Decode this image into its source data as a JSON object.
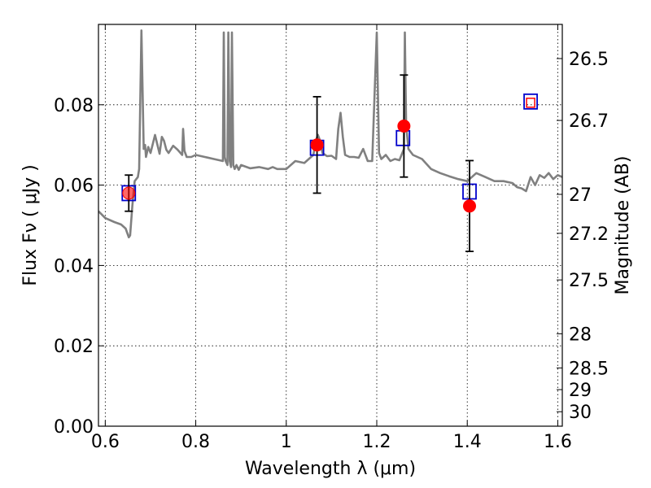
{
  "chart_data": {
    "type": "scatter",
    "title": "",
    "xlabel": "Wavelength  λ (μm)",
    "ylabel": "Flux  Fν  ( μJy )",
    "y2label": "Magnitude (AB)",
    "xlim": [
      0.585,
      1.61
    ],
    "ylim": [
      0.0,
      0.1
    ],
    "grid": true,
    "x_ticks": [
      {
        "value": 0.6,
        "label": "0.6"
      },
      {
        "value": 0.8,
        "label": "0.8"
      },
      {
        "value": 1.0,
        "label": "1"
      },
      {
        "value": 1.2,
        "label": "1.2"
      },
      {
        "value": 1.4,
        "label": "1.4"
      },
      {
        "value": 1.6,
        "label": "1.6"
      }
    ],
    "y_ticks": [
      {
        "value": 0.0,
        "label": "0.00"
      },
      {
        "value": 0.02,
        "label": "0.02"
      },
      {
        "value": 0.04,
        "label": "0.04"
      },
      {
        "value": 0.06,
        "label": "0.06"
      },
      {
        "value": 0.08,
        "label": "0.08"
      }
    ],
    "y2_ticks": [
      {
        "label": "26.5",
        "flux": 0.0915
      },
      {
        "label": "26.7",
        "flux": 0.0761
      },
      {
        "label": "27",
        "flux": 0.0577
      },
      {
        "label": "27.2",
        "flux": 0.048
      },
      {
        "label": "27.5",
        "flux": 0.0364
      },
      {
        "label": "28",
        "flux": 0.023
      },
      {
        "label": "28.5",
        "flux": 0.0145
      },
      {
        "label": "29",
        "flux": 0.0091
      },
      {
        "label": "30",
        "flux": 0.0036
      }
    ],
    "series": [
      {
        "marker": "line",
        "color": "#808080",
        "x": [
          0.585,
          0.6,
          0.62,
          0.635,
          0.645,
          0.652,
          0.655,
          0.66,
          0.665,
          0.672,
          0.675,
          0.68,
          0.685,
          0.688,
          0.69,
          0.695,
          0.7,
          0.71,
          0.72,
          0.725,
          0.73,
          0.735,
          0.74,
          0.75,
          0.76,
          0.77,
          0.772,
          0.775,
          0.78,
          0.79,
          0.8,
          0.82,
          0.84,
          0.86,
          0.862,
          0.864,
          0.866,
          0.87,
          0.872,
          0.875,
          0.878,
          0.88,
          0.883,
          0.886,
          0.89,
          0.895,
          0.9,
          0.92,
          0.94,
          0.96,
          0.97,
          0.98,
          1.0,
          1.02,
          1.04,
          1.06,
          1.065,
          1.07,
          1.075,
          1.08,
          1.09,
          1.1,
          1.11,
          1.115,
          1.12,
          1.125,
          1.13,
          1.14,
          1.15,
          1.16,
          1.17,
          1.18,
          1.19,
          1.2,
          1.205,
          1.21,
          1.22,
          1.23,
          1.24,
          1.25,
          1.26,
          1.262,
          1.265,
          1.27,
          1.28,
          1.3,
          1.32,
          1.34,
          1.36,
          1.38,
          1.4,
          1.42,
          1.44,
          1.46,
          1.48,
          1.5,
          1.51,
          1.52,
          1.53,
          1.54,
          1.55,
          1.56,
          1.57,
          1.58,
          1.59,
          1.6,
          1.61
        ],
        "y": [
          0.0535,
          0.0518,
          0.0508,
          0.0502,
          0.0492,
          0.047,
          0.0475,
          0.055,
          0.061,
          0.062,
          0.064,
          0.0985,
          0.069,
          0.07,
          0.067,
          0.0695,
          0.068,
          0.0725,
          0.0678,
          0.072,
          0.071,
          0.0688,
          0.068,
          0.0698,
          0.0688,
          0.0675,
          0.074,
          0.0685,
          0.067,
          0.067,
          0.0675,
          0.067,
          0.0665,
          0.066,
          0.098,
          0.067,
          0.066,
          0.065,
          0.098,
          0.066,
          0.0645,
          0.098,
          0.065,
          0.064,
          0.065,
          0.0638,
          0.065,
          0.0642,
          0.0645,
          0.064,
          0.0645,
          0.064,
          0.064,
          0.066,
          0.0655,
          0.0675,
          0.071,
          0.0725,
          0.071,
          0.068,
          0.0672,
          0.0673,
          0.0665,
          0.074,
          0.078,
          0.072,
          0.0675,
          0.067,
          0.067,
          0.0668,
          0.069,
          0.066,
          0.066,
          0.098,
          0.068,
          0.0665,
          0.0675,
          0.066,
          0.0665,
          0.0662,
          0.069,
          0.098,
          0.075,
          0.069,
          0.0675,
          0.0665,
          0.064,
          0.063,
          0.0622,
          0.0615,
          0.061,
          0.063,
          0.062,
          0.061,
          0.061,
          0.0605,
          0.0595,
          0.0592,
          0.0585,
          0.062,
          0.06,
          0.0625,
          0.0618,
          0.063,
          0.0615,
          0.0625,
          0.062
        ]
      },
      {
        "name": "",
        "marker": "square",
        "color": "#0000cc",
        "x": [
          0.652,
          1.068,
          1.258,
          1.405,
          1.54
        ],
        "y": [
          0.058,
          0.0693,
          0.0717,
          0.0584,
          0.0808
        ]
      },
      {
        "name": "",
        "marker": "circle",
        "color": "#ff0000",
        "x": [
          0.652,
          1.068,
          1.26,
          1.405,
          1.54
        ],
        "y": [
          0.058,
          0.07,
          0.0747,
          0.0548,
          0.0805
        ],
        "y_err": [
          0.0045,
          0.012,
          0.0127,
          0.0113,
          0
        ]
      }
    ]
  }
}
